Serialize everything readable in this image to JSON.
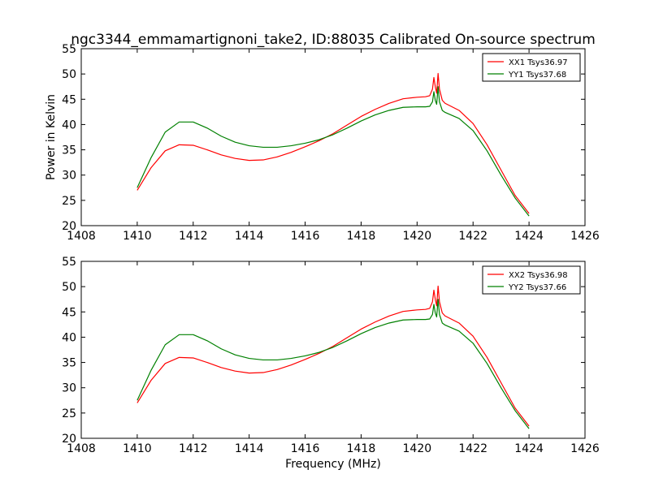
{
  "figure": {
    "title": "ngc3344_emmamartignoni_take2, ID:88035 Calibrated On-source spectrum"
  },
  "chart_data": [
    {
      "type": "line",
      "title": "",
      "xlabel": "",
      "ylabel": "Power in Kelvin",
      "xlim": [
        1408,
        1426
      ],
      "ylim": [
        20,
        55
      ],
      "xticks": [
        1408,
        1410,
        1412,
        1414,
        1416,
        1418,
        1420,
        1422,
        1424,
        1426
      ],
      "yticks": [
        20,
        25,
        30,
        35,
        40,
        45,
        50,
        55
      ],
      "grid": false,
      "legend_position": "top-right",
      "series": [
        {
          "name": "XX1 Tsys36.97",
          "color": "#ff0000",
          "x": [
            1410.0,
            1410.5,
            1411.0,
            1411.5,
            1412.0,
            1412.5,
            1413.0,
            1413.5,
            1414.0,
            1414.5,
            1415.0,
            1415.5,
            1416.0,
            1416.5,
            1417.0,
            1417.5,
            1418.0,
            1418.5,
            1419.0,
            1419.5,
            1420.0,
            1420.3,
            1420.45,
            1420.55,
            1420.6,
            1420.65,
            1420.7,
            1420.75,
            1420.8,
            1420.9,
            1421.0,
            1421.5,
            1422.0,
            1422.5,
            1423.0,
            1423.5,
            1424.0
          ],
          "y": [
            27.0,
            31.5,
            34.8,
            36.0,
            35.9,
            35.0,
            34.0,
            33.3,
            32.9,
            33.0,
            33.6,
            34.5,
            35.6,
            36.8,
            38.2,
            39.9,
            41.6,
            43.0,
            44.2,
            45.1,
            45.4,
            45.5,
            45.7,
            47.0,
            49.3,
            47.5,
            46.2,
            50.1,
            47.0,
            44.8,
            44.2,
            42.8,
            40.2,
            36.0,
            31.0,
            26.0,
            22.4
          ]
        },
        {
          "name": "YY1 Tsys37.68",
          "color": "#008000",
          "x": [
            1410.0,
            1410.5,
            1411.0,
            1411.5,
            1412.0,
            1412.5,
            1413.0,
            1413.5,
            1414.0,
            1414.5,
            1415.0,
            1415.5,
            1416.0,
            1416.5,
            1417.0,
            1417.5,
            1418.0,
            1418.5,
            1419.0,
            1419.5,
            1420.0,
            1420.3,
            1420.45,
            1420.55,
            1420.6,
            1420.65,
            1420.7,
            1420.75,
            1420.8,
            1420.9,
            1421.0,
            1421.5,
            1422.0,
            1422.5,
            1423.0,
            1423.5,
            1424.0
          ],
          "y": [
            27.5,
            33.5,
            38.5,
            40.5,
            40.5,
            39.3,
            37.7,
            36.5,
            35.8,
            35.5,
            35.5,
            35.8,
            36.3,
            37.0,
            38.0,
            39.3,
            40.7,
            41.9,
            42.8,
            43.4,
            43.5,
            43.5,
            43.6,
            44.5,
            46.5,
            44.8,
            44.0,
            47.5,
            44.5,
            42.8,
            42.4,
            41.2,
            38.8,
            34.8,
            30.0,
            25.5,
            21.9
          ]
        }
      ]
    },
    {
      "type": "line",
      "title": "",
      "xlabel": "Frequency (MHz)",
      "ylabel": "",
      "xlim": [
        1408,
        1426
      ],
      "ylim": [
        20,
        55
      ],
      "xticks": [
        1408,
        1410,
        1412,
        1414,
        1416,
        1418,
        1420,
        1422,
        1424,
        1426
      ],
      "yticks": [
        20,
        25,
        30,
        35,
        40,
        45,
        50,
        55
      ],
      "grid": false,
      "legend_position": "top-right",
      "series": [
        {
          "name": "XX2 Tsys36.98",
          "color": "#ff0000",
          "x": [
            1410.0,
            1410.5,
            1411.0,
            1411.5,
            1412.0,
            1412.5,
            1413.0,
            1413.5,
            1414.0,
            1414.5,
            1415.0,
            1415.5,
            1416.0,
            1416.5,
            1417.0,
            1417.5,
            1418.0,
            1418.5,
            1419.0,
            1419.5,
            1420.0,
            1420.3,
            1420.45,
            1420.55,
            1420.6,
            1420.65,
            1420.7,
            1420.75,
            1420.8,
            1420.9,
            1421.0,
            1421.5,
            1422.0,
            1422.5,
            1423.0,
            1423.5,
            1424.0
          ],
          "y": [
            27.0,
            31.5,
            34.8,
            36.0,
            35.9,
            35.0,
            34.0,
            33.3,
            32.9,
            33.0,
            33.6,
            34.5,
            35.6,
            36.8,
            38.2,
            39.9,
            41.6,
            43.0,
            44.2,
            45.1,
            45.4,
            45.5,
            45.7,
            47.0,
            49.3,
            47.5,
            46.2,
            50.1,
            47.0,
            44.8,
            44.2,
            42.8,
            40.2,
            36.0,
            31.0,
            26.0,
            22.4
          ]
        },
        {
          "name": "YY2 Tsys37.66",
          "color": "#008000",
          "x": [
            1410.0,
            1410.5,
            1411.0,
            1411.5,
            1412.0,
            1412.5,
            1413.0,
            1413.5,
            1414.0,
            1414.5,
            1415.0,
            1415.5,
            1416.0,
            1416.5,
            1417.0,
            1417.5,
            1418.0,
            1418.5,
            1419.0,
            1419.5,
            1420.0,
            1420.3,
            1420.45,
            1420.55,
            1420.6,
            1420.65,
            1420.7,
            1420.75,
            1420.8,
            1420.9,
            1421.0,
            1421.5,
            1422.0,
            1422.5,
            1423.0,
            1423.5,
            1424.0
          ],
          "y": [
            27.5,
            33.5,
            38.5,
            40.5,
            40.5,
            39.3,
            37.7,
            36.5,
            35.8,
            35.5,
            35.5,
            35.8,
            36.3,
            37.0,
            38.0,
            39.3,
            40.7,
            41.9,
            42.8,
            43.4,
            43.5,
            43.5,
            43.6,
            44.5,
            46.5,
            44.8,
            44.0,
            47.5,
            44.5,
            42.8,
            42.4,
            41.2,
            38.8,
            34.8,
            30.0,
            25.5,
            21.9
          ]
        }
      ]
    }
  ]
}
